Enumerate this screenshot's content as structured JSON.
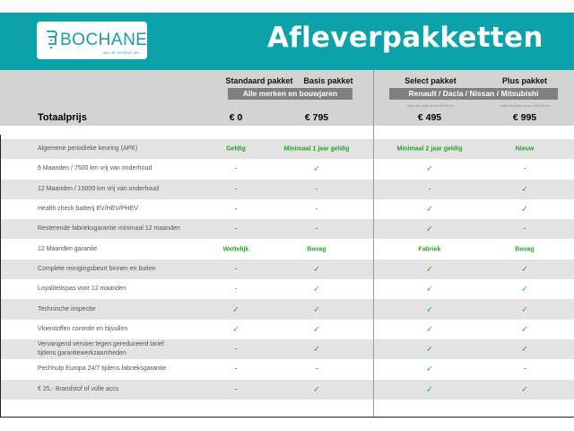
{
  "brand": {
    "name": "BOCHANE",
    "tagline": "ALS JE VOORUIT WIL"
  },
  "title": "Afleverpakketten",
  "colors": {
    "header": "#0ba2a9",
    "band": "#d3d3d3",
    "check": "#2aa02a"
  },
  "columns": [
    {
      "name": "Standaard pakket",
      "price": "€ 0"
    },
    {
      "name": "Basis pakket",
      "price": "€ 795"
    },
    {
      "name": "Select pakket",
      "price": "€ 495",
      "note": "Auto's tot 1 jaar oud en 20.000 km"
    },
    {
      "name": "Plus pakket",
      "price": "€ 995",
      "note": "Auto's tot 5 jaar oud en 100.000 km"
    }
  ],
  "groups": [
    "Alle merken en bouwjaren",
    "Renault / Dacia / Nissan / Mitsubishi"
  ],
  "total_label": "Totaalprijs",
  "rows": [
    {
      "label": "Algemene periodieke keuring (APK)",
      "values": [
        "Geldig",
        "Minimaal 1 jaar geldig",
        "Minimaal 2 jaar geldig",
        "Nieuw"
      ]
    },
    {
      "label": "6 Maanden / 7500 km vrij van onderhoud",
      "values": [
        "-",
        "✓",
        "✓",
        "-"
      ]
    },
    {
      "label": "12 Maanden / 15000 km vrij van onderhoud",
      "values": [
        "-",
        "-",
        "-",
        "✓"
      ]
    },
    {
      "label": "Health check batterij EV/HEV/PHEV",
      "values": [
        "-",
        "-",
        "✓",
        "✓"
      ]
    },
    {
      "label": "Resterende fabrieksgarantie minimaal 12 maanden",
      "values": [
        "-",
        "-",
        "✓",
        "-"
      ]
    },
    {
      "label": "12 Maanden  garantie",
      "values": [
        "Wettelijk",
        "Bovag",
        "Fabriek",
        "Bovag"
      ]
    },
    {
      "label": "Complete reinigingsbeurt binnen en buiten",
      "values": [
        "-",
        "✓",
        "✓",
        "✓"
      ]
    },
    {
      "label": "Loyaliteitspas voor 12 maanden",
      "values": [
        "-",
        "✓",
        "✓",
        "✓"
      ]
    },
    {
      "label": "Technische inspectie",
      "values": [
        "✓",
        "✓",
        "✓",
        "✓"
      ]
    },
    {
      "label": "Vloeistoffen controle en bijvullen",
      "values": [
        "✓",
        "✓",
        "✓",
        "✓"
      ]
    },
    {
      "label": "Vervangend vervoer tegen gereduceerd tarief tijdens garantiewerkzaamheden",
      "values": [
        "-",
        "✓",
        "✓",
        "✓"
      ]
    },
    {
      "label": "Pechhulp Europa 24/7 tijdens fabrieksgarantie",
      "values": [
        "-",
        "-",
        "✓",
        "-"
      ]
    },
    {
      "label": "€ 25,- Brandstof of  volle accu",
      "values": [
        "-",
        "✓",
        "✓",
        "✓"
      ]
    }
  ]
}
